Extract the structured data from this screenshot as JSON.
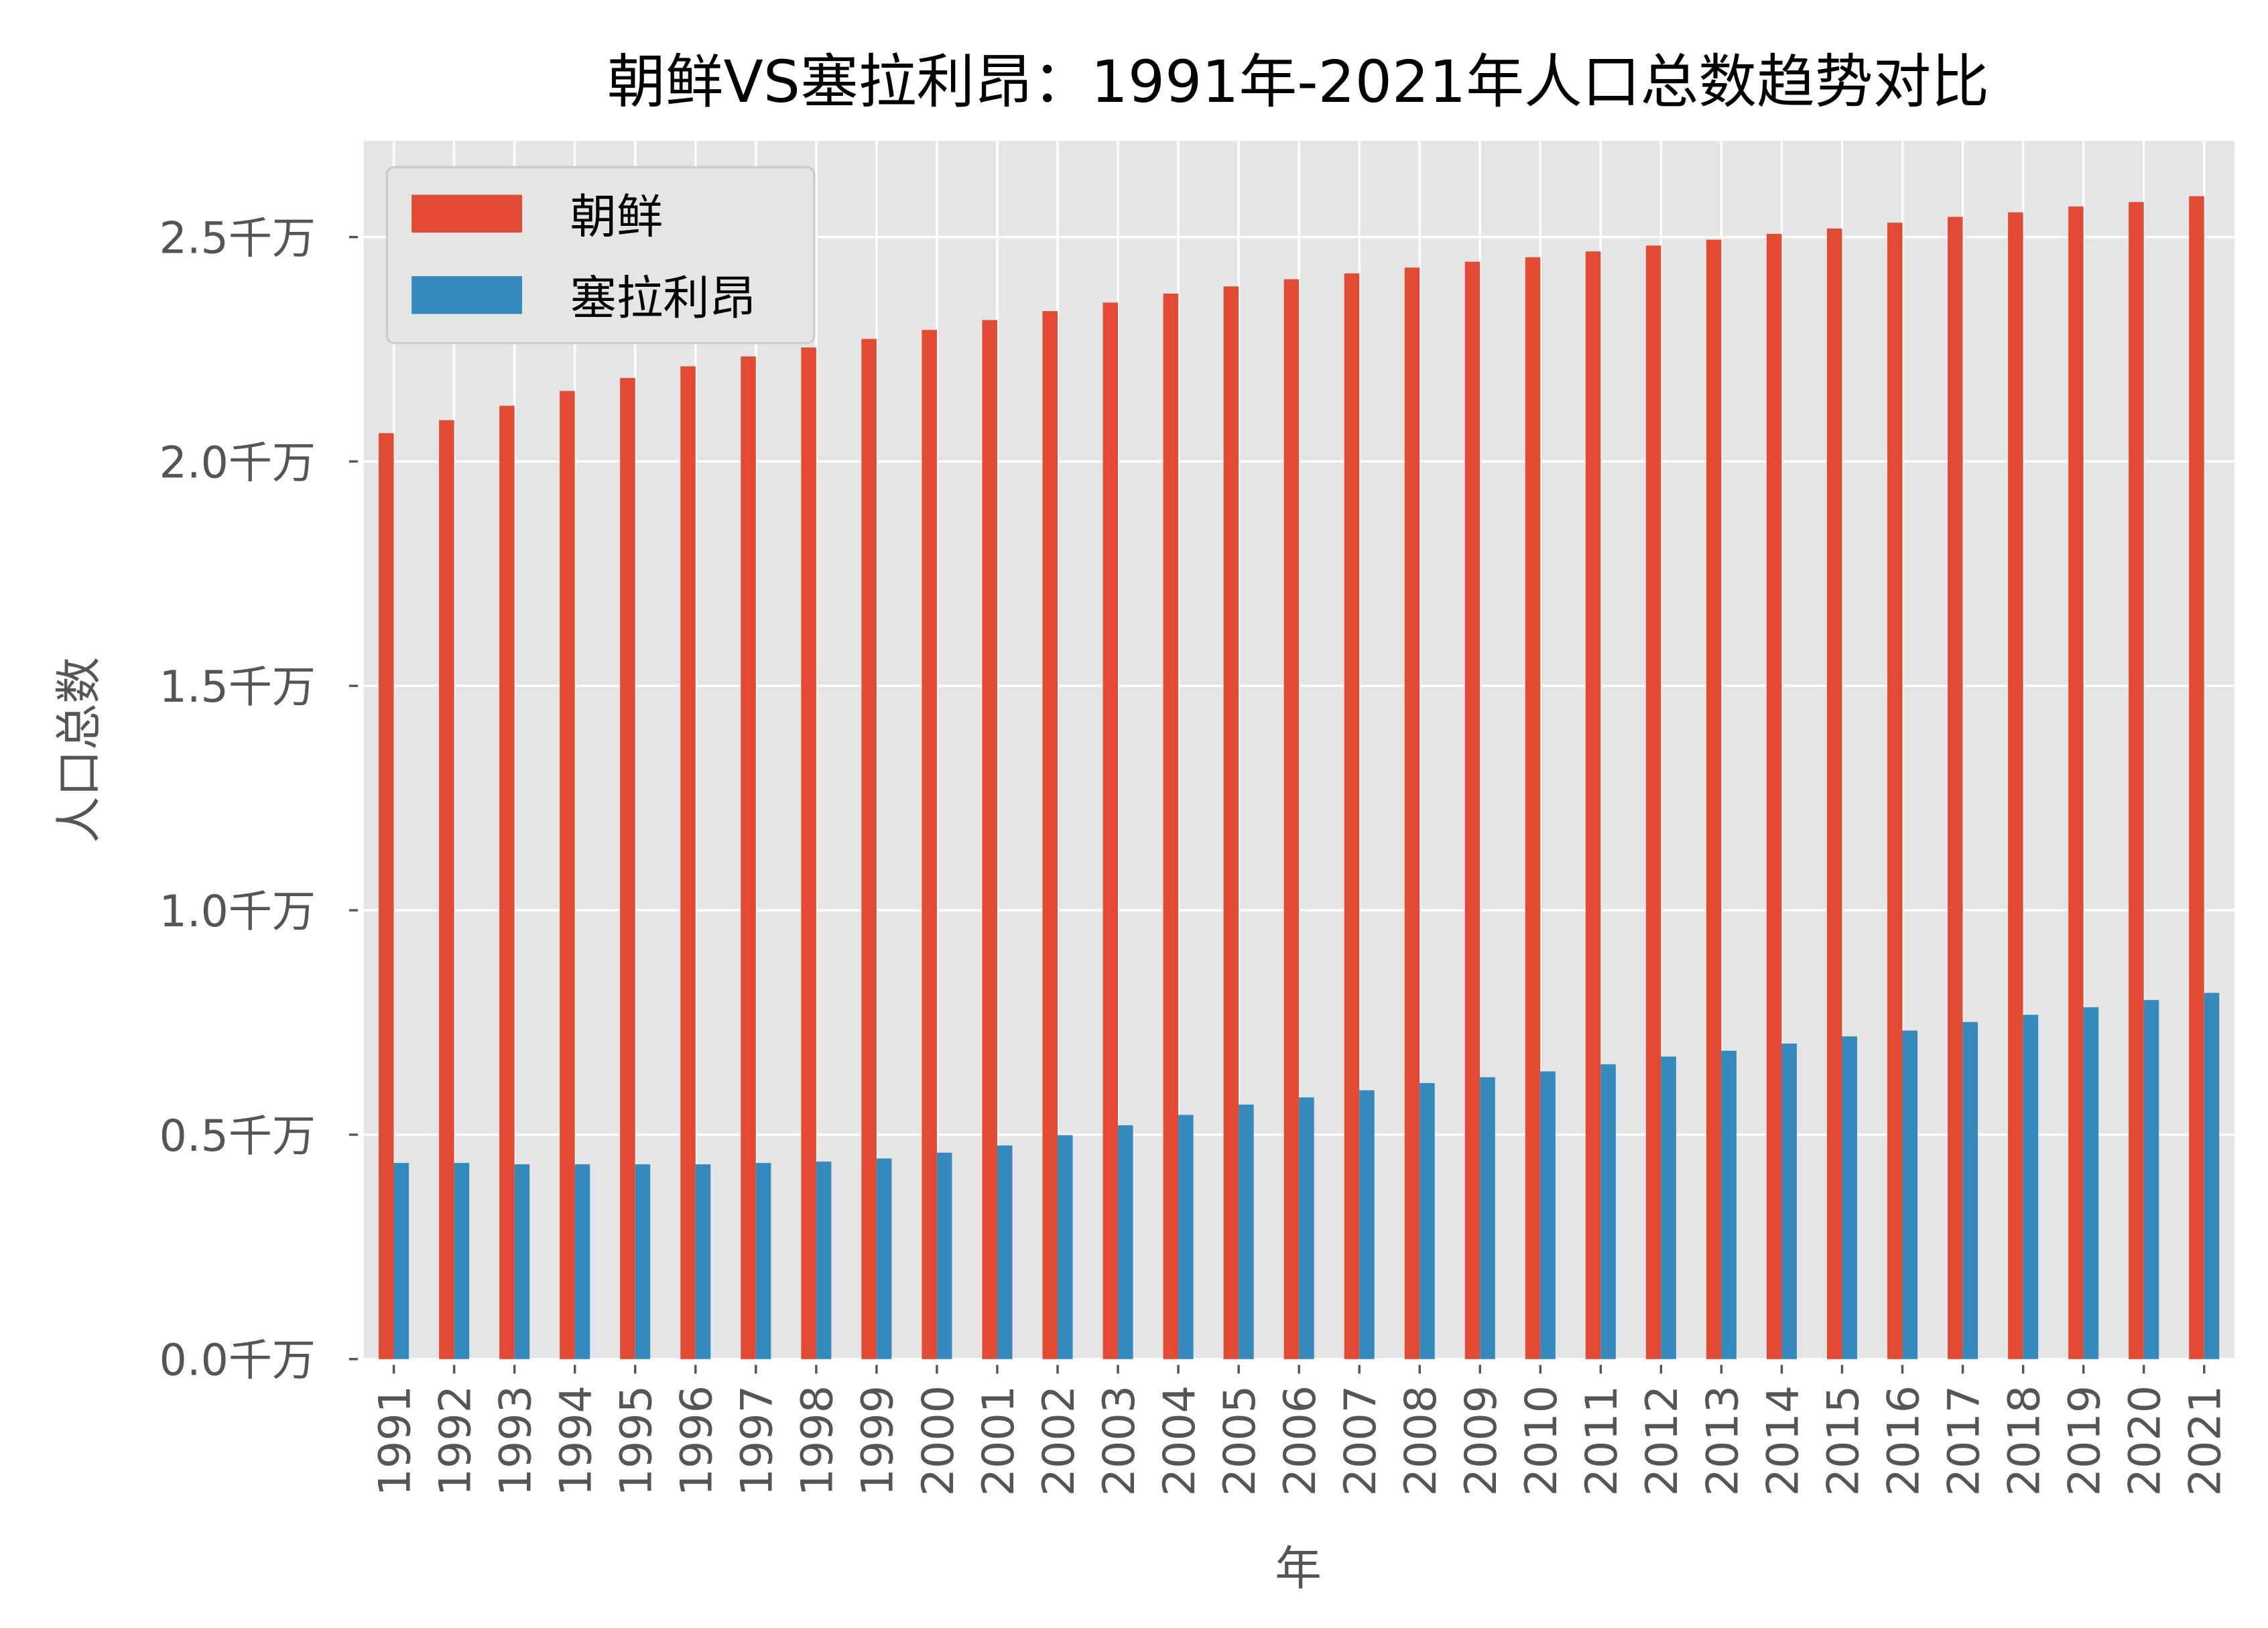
{
  "chart_data": {
    "type": "bar",
    "title": "朝鲜VS塞拉利昂：1991年-2021年人口总数趋势对比",
    "xlabel": "年",
    "ylabel": "人口总数",
    "unit": "千万",
    "ylim": [
      0,
      2.714
    ],
    "yticks": [
      0.0,
      0.5,
      1.0,
      1.5,
      2.0,
      2.5
    ],
    "ytick_labels": [
      "0.0千万",
      "0.5千万",
      "1.0千万",
      "1.5千万",
      "2.0千万",
      "2.5千万"
    ],
    "grid": true,
    "legend_position": "top-left",
    "categories": [
      "1991",
      "1992",
      "1993",
      "1994",
      "1995",
      "1996",
      "1997",
      "1998",
      "1999",
      "2000",
      "2001",
      "2002",
      "2003",
      "2004",
      "2005",
      "2006",
      "2007",
      "2008",
      "2009",
      "2010",
      "2011",
      "2012",
      "2013",
      "2014",
      "2015",
      "2016",
      "2017",
      "2018",
      "2019",
      "2020",
      "2021"
    ],
    "series": [
      {
        "name": "朝鲜",
        "color": "#E24A33",
        "values": [
          2.063,
          2.092,
          2.124,
          2.157,
          2.186,
          2.212,
          2.234,
          2.254,
          2.273,
          2.293,
          2.315,
          2.335,
          2.354,
          2.374,
          2.39,
          2.406,
          2.419,
          2.432,
          2.445,
          2.455,
          2.468,
          2.481,
          2.494,
          2.507,
          2.519,
          2.532,
          2.545,
          2.555,
          2.568,
          2.578,
          2.591
        ]
      },
      {
        "name": "塞拉利昂",
        "color": "#348ABD",
        "values": [
          0.437,
          0.437,
          0.434,
          0.434,
          0.434,
          0.434,
          0.437,
          0.44,
          0.447,
          0.46,
          0.476,
          0.499,
          0.521,
          0.544,
          0.567,
          0.583,
          0.599,
          0.615,
          0.628,
          0.641,
          0.657,
          0.674,
          0.687,
          0.703,
          0.719,
          0.732,
          0.751,
          0.767,
          0.784,
          0.8,
          0.816
        ]
      }
    ]
  }
}
